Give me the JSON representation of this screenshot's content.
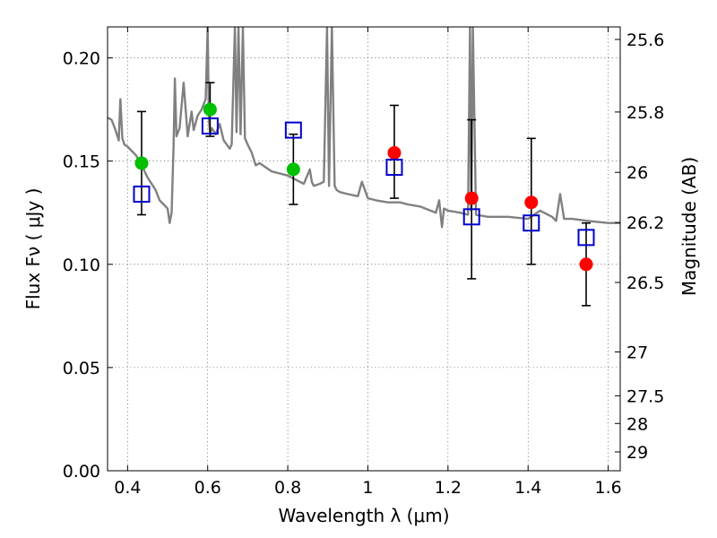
{
  "chart_data": {
    "type": "scatter",
    "xlabel": "Wavelength  λ (μm)",
    "ylabel": "Flux  Fν  ( μJy )",
    "y2label": "Magnitude (AB)",
    "xlim": [
      0.35,
      1.63
    ],
    "ylim": [
      0.0,
      0.215
    ],
    "grid": true,
    "x_ticks": [
      {
        "value": 0.4,
        "label": "0.4"
      },
      {
        "value": 0.6,
        "label": "0.6"
      },
      {
        "value": 0.8,
        "label": "0.8"
      },
      {
        "value": 1.0,
        "label": "1"
      },
      {
        "value": 1.2,
        "label": "1.2"
      },
      {
        "value": 1.4,
        "label": "1.4"
      },
      {
        "value": 1.6,
        "label": "1.6"
      }
    ],
    "y_ticks": [
      {
        "value": 0.0,
        "label": "0.00"
      },
      {
        "value": 0.05,
        "label": "0.05"
      },
      {
        "value": 0.1,
        "label": "0.10"
      },
      {
        "value": 0.15,
        "label": "0.15"
      },
      {
        "value": 0.2,
        "label": "0.20"
      }
    ],
    "magnitude_ticks": [
      {
        "mag": 25.6,
        "label": "25.6"
      },
      {
        "mag": 25.8,
        "label": "25.8"
      },
      {
        "mag": 26.0,
        "label": "26"
      },
      {
        "mag": 26.2,
        "label": "26.2"
      },
      {
        "mag": 26.5,
        "label": "26.5"
      },
      {
        "mag": 27.0,
        "label": "27"
      },
      {
        "mag": 27.5,
        "label": "27.5"
      },
      {
        "mag": 28.0,
        "label": "28"
      },
      {
        "mag": 29.0,
        "label": "29"
      }
    ],
    "series": [
      {
        "kind": "line",
        "color": "#808080",
        "x": [
          0.35,
          0.36,
          0.37,
          0.378,
          0.382,
          0.387,
          0.392,
          0.4,
          0.41,
          0.42,
          0.43,
          0.44,
          0.45,
          0.46,
          0.47,
          0.48,
          0.49,
          0.5,
          0.505,
          0.51,
          0.515,
          0.518,
          0.522,
          0.53,
          0.54,
          0.55,
          0.56,
          0.565,
          0.575,
          0.585,
          0.595,
          0.6,
          0.603,
          0.606,
          0.61,
          0.62,
          0.63,
          0.64,
          0.655,
          0.66,
          0.668,
          0.672,
          0.677,
          0.682,
          0.688,
          0.693,
          0.7,
          0.71,
          0.72,
          0.73,
          0.745,
          0.76,
          0.78,
          0.8,
          0.82,
          0.84,
          0.855,
          0.86,
          0.865,
          0.88,
          0.89,
          0.898,
          0.903,
          0.91,
          0.917,
          0.922,
          0.93,
          0.95,
          0.975,
          0.985,
          1.0,
          1.02,
          1.05,
          1.08,
          1.1,
          1.13,
          1.17,
          1.178,
          1.185,
          1.19,
          1.2,
          1.23,
          1.25,
          1.255,
          1.258,
          1.262,
          1.27,
          1.3,
          1.35,
          1.4,
          1.43,
          1.46,
          1.47,
          1.48,
          1.49,
          1.51,
          1.55,
          1.6,
          1.63
        ],
        "y": [
          0.171,
          0.17,
          0.165,
          0.16,
          0.18,
          0.161,
          0.158,
          0.157,
          0.155,
          0.153,
          0.15,
          0.146,
          0.142,
          0.139,
          0.136,
          0.131,
          0.129,
          0.127,
          0.12,
          0.125,
          0.158,
          0.19,
          0.162,
          0.166,
          0.188,
          0.162,
          0.174,
          0.165,
          0.172,
          0.175,
          0.18,
          0.215,
          0.17,
          0.163,
          0.166,
          0.163,
          0.168,
          0.16,
          0.156,
          0.158,
          0.215,
          0.164,
          0.215,
          0.163,
          0.215,
          0.161,
          0.158,
          0.154,
          0.148,
          0.149,
          0.147,
          0.145,
          0.144,
          0.143,
          0.141,
          0.139,
          0.146,
          0.14,
          0.138,
          0.139,
          0.14,
          0.215,
          0.138,
          0.215,
          0.138,
          0.136,
          0.135,
          0.134,
          0.133,
          0.14,
          0.132,
          0.131,
          0.13,
          0.13,
          0.129,
          0.128,
          0.125,
          0.131,
          0.118,
          0.127,
          0.126,
          0.125,
          0.124,
          0.215,
          0.126,
          0.215,
          0.124,
          0.123,
          0.123,
          0.122,
          0.126,
          0.123,
          0.121,
          0.134,
          0.122,
          0.122,
          0.121,
          0.12,
          0.12
        ]
      },
      {
        "kind": "markers",
        "marker": "circle",
        "color": "#00c000",
        "points": [
          {
            "x": 0.435,
            "y": 0.149
          },
          {
            "x": 0.606,
            "y": 0.175
          },
          {
            "x": 0.814,
            "y": 0.146
          }
        ]
      },
      {
        "kind": "markers",
        "marker": "circle",
        "color": "#ff0000",
        "points": [
          {
            "x": 1.066,
            "y": 0.154
          },
          {
            "x": 1.259,
            "y": 0.132
          },
          {
            "x": 1.408,
            "y": 0.13
          },
          {
            "x": 1.545,
            "y": 0.1
          }
        ]
      },
      {
        "kind": "markers",
        "marker": "open-square",
        "color": "#0000cc",
        "points": [
          {
            "x": 0.435,
            "y": 0.134
          },
          {
            "x": 0.606,
            "y": 0.167
          },
          {
            "x": 0.814,
            "y": 0.165
          },
          {
            "x": 1.066,
            "y": 0.147
          },
          {
            "x": 1.259,
            "y": 0.123
          },
          {
            "x": 1.408,
            "y": 0.12
          },
          {
            "x": 1.545,
            "y": 0.113
          }
        ]
      },
      {
        "kind": "errorbars",
        "color": "#000000",
        "bars": [
          {
            "x": 0.435,
            "low": 0.124,
            "high": 0.174
          },
          {
            "x": 0.606,
            "low": 0.162,
            "high": 0.188
          },
          {
            "x": 0.814,
            "low": 0.129,
            "high": 0.163
          },
          {
            "x": 1.066,
            "low": 0.132,
            "high": 0.177
          },
          {
            "x": 1.259,
            "low": 0.093,
            "high": 0.17
          },
          {
            "x": 1.408,
            "low": 0.1,
            "high": 0.161
          },
          {
            "x": 1.545,
            "low": 0.08,
            "high": 0.12
          }
        ]
      }
    ]
  }
}
